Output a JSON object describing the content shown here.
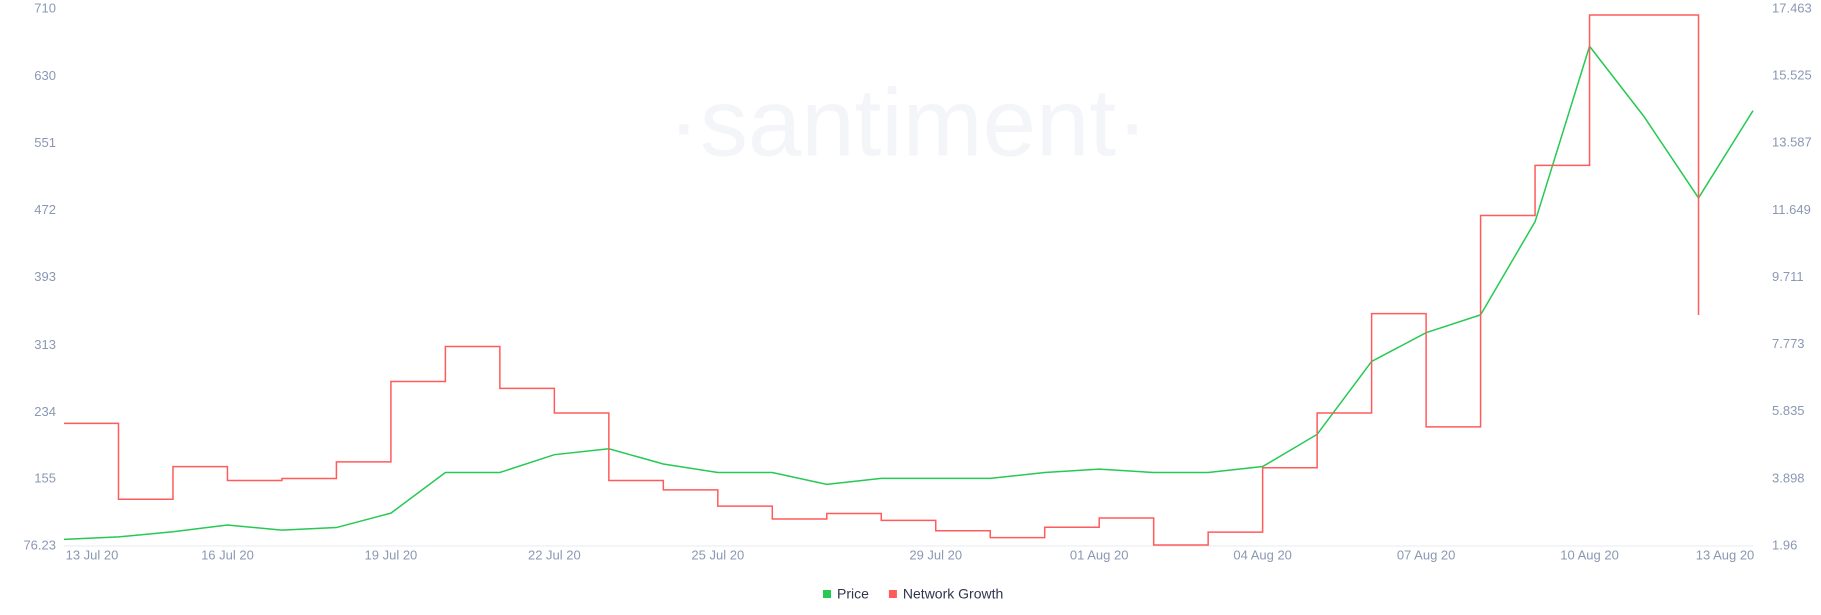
{
  "chart_data": {
    "type": "line",
    "watermark": "·santiment·",
    "categories": [
      "13 Jul 20",
      null,
      null,
      "16 Jul 20",
      null,
      null,
      "19 Jul 20",
      null,
      null,
      "22 Jul 20",
      null,
      null,
      "25 Jul 20",
      null,
      null,
      null,
      "29 Jul 20",
      null,
      null,
      "01 Aug 20",
      null,
      null,
      "04 Aug 20",
      null,
      null,
      "07 Aug 20",
      null,
      null,
      "10 Aug 20",
      null,
      null,
      "13 Aug 20"
    ],
    "series": [
      {
        "name": "Price",
        "color": "#26c953",
        "axis": "y",
        "values": [
          84,
          87,
          93,
          101,
          95,
          98,
          115,
          163,
          163,
          184,
          191,
          173,
          163,
          163,
          149,
          156,
          156,
          156,
          163,
          167,
          163,
          163,
          170,
          208,
          294,
          328,
          349,
          459,
          666,
          583,
          487,
          590
        ]
      },
      {
        "name": "Network Growth",
        "color": "#ff5b5b",
        "axis": "y2",
        "step": true,
        "values": [
          5.5,
          3.31,
          4.25,
          3.85,
          3.91,
          4.39,
          6.71,
          7.72,
          6.51,
          5.8,
          3.85,
          3.58,
          3.11,
          2.74,
          2.9,
          2.7,
          2.4,
          2.2,
          2.5,
          2.77,
          1.99,
          2.36,
          4.22,
          5.8,
          8.67,
          5.4,
          11.5,
          12.95,
          17.29,
          17.29,
          8.63,
          null
        ]
      }
    ],
    "ylim": [
      76.23,
      710
    ],
    "yticks": [
      76.23,
      155,
      234,
      313,
      393,
      472,
      551,
      630,
      710
    ],
    "y2lim": [
      1.96,
      17.463
    ],
    "y2ticks": [
      1.96,
      3.898,
      5.835,
      7.773,
      9.711,
      11.649,
      13.587,
      15.525,
      17.463
    ],
    "legend": "bottom"
  }
}
